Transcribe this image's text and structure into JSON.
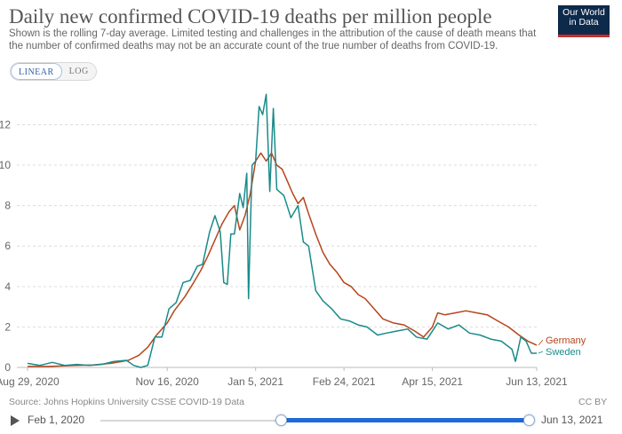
{
  "header": {
    "title": "Daily new confirmed COVID-19 deaths per million people",
    "subtitle": "Shown is the rolling 7-day average. Limited testing and challenges in the attribution of the cause of death means that the number of confirmed deaths may not be an accurate count of the true number of deaths from COVID-19."
  },
  "logo": {
    "line1": "Our World",
    "line2": "in Data",
    "colors": {
      "bg": "#0d2a4b",
      "accent": "#cc2b2b"
    }
  },
  "controls": {
    "linear_label": "LINEAR",
    "log_label": "LOG",
    "active": "LINEAR"
  },
  "footer": {
    "source": "Source: Johns Hopkins University CSSE COVID-19 Data",
    "license": "CC BY"
  },
  "timeline": {
    "start_label": "Feb 1, 2020",
    "end_label": "Jun 13, 2021",
    "selected_start": "Aug 29, 2020",
    "selected_end": "Jun 13, 2021"
  },
  "chart_data": {
    "type": "line",
    "title": "Daily new confirmed COVID-19 deaths per million people",
    "xlabel": "",
    "ylabel": "",
    "x_range": [
      "2020-08-29",
      "2021-06-13"
    ],
    "ylim": [
      0,
      13.6
    ],
    "y_ticks": [
      0,
      2,
      4,
      6,
      8,
      10,
      12
    ],
    "x_ticks": [
      {
        "date": "2020-08-29",
        "label": "Aug 29, 2020"
      },
      {
        "date": "2020-11-16",
        "label": "Nov 16, 2020"
      },
      {
        "date": "2021-01-05",
        "label": "Jan 5, 2021"
      },
      {
        "date": "2021-02-24",
        "label": "Feb 24, 2021"
      },
      {
        "date": "2021-04-15",
        "label": "Apr 15, 2021"
      },
      {
        "date": "2021-06-13",
        "label": "Jun 13, 2021"
      }
    ],
    "grid": "horizontal dashed",
    "legend": "right end labels",
    "series": [
      {
        "name": "Germany",
        "color": "#b5451b",
        "points": [
          [
            "2020-08-29",
            0.05
          ],
          [
            "2020-09-10",
            0.05
          ],
          [
            "2020-09-25",
            0.1
          ],
          [
            "2020-10-05",
            0.12
          ],
          [
            "2020-10-15",
            0.2
          ],
          [
            "2020-10-25",
            0.35
          ],
          [
            "2020-10-31",
            0.6
          ],
          [
            "2020-11-05",
            1.0
          ],
          [
            "2020-11-10",
            1.6
          ],
          [
            "2020-11-16",
            2.2
          ],
          [
            "2020-11-20",
            2.8
          ],
          [
            "2020-11-26",
            3.5
          ],
          [
            "2020-12-01",
            4.2
          ],
          [
            "2020-12-05",
            4.8
          ],
          [
            "2020-12-09",
            5.5
          ],
          [
            "2020-12-13",
            6.3
          ],
          [
            "2020-12-17",
            7.1
          ],
          [
            "2020-12-21",
            7.7
          ],
          [
            "2020-12-24",
            8.0
          ],
          [
            "2020-12-27",
            6.8
          ],
          [
            "2020-12-30",
            7.5
          ],
          [
            "2021-01-02",
            8.6
          ],
          [
            "2021-01-05",
            10.2
          ],
          [
            "2021-01-08",
            10.6
          ],
          [
            "2021-01-11",
            10.2
          ],
          [
            "2021-01-14",
            10.6
          ],
          [
            "2021-01-17",
            10.0
          ],
          [
            "2021-01-20",
            9.8
          ],
          [
            "2021-01-23",
            9.2
          ],
          [
            "2021-01-26",
            8.6
          ],
          [
            "2021-01-29",
            8.1
          ],
          [
            "2021-02-01",
            8.4
          ],
          [
            "2021-02-04",
            7.6
          ],
          [
            "2021-02-08",
            6.6
          ],
          [
            "2021-02-12",
            5.7
          ],
          [
            "2021-02-16",
            5.1
          ],
          [
            "2021-02-20",
            4.7
          ],
          [
            "2021-02-24",
            4.2
          ],
          [
            "2021-02-28",
            4.0
          ],
          [
            "2021-03-04",
            3.6
          ],
          [
            "2021-03-08",
            3.4
          ],
          [
            "2021-03-12",
            3.0
          ],
          [
            "2021-03-18",
            2.4
          ],
          [
            "2021-03-24",
            2.2
          ],
          [
            "2021-03-30",
            2.1
          ],
          [
            "2021-04-05",
            1.8
          ],
          [
            "2021-04-10",
            1.5
          ],
          [
            "2021-04-15",
            2.0
          ],
          [
            "2021-04-18",
            2.7
          ],
          [
            "2021-04-22",
            2.6
          ],
          [
            "2021-04-28",
            2.7
          ],
          [
            "2021-05-04",
            2.8
          ],
          [
            "2021-05-10",
            2.7
          ],
          [
            "2021-05-16",
            2.6
          ],
          [
            "2021-05-22",
            2.3
          ],
          [
            "2021-05-28",
            2.0
          ],
          [
            "2021-06-03",
            1.6
          ],
          [
            "2021-06-08",
            1.3
          ],
          [
            "2021-06-13",
            1.1
          ]
        ]
      },
      {
        "name": "Sweden",
        "color": "#1a8a8a",
        "points": [
          [
            "2020-08-29",
            0.2
          ],
          [
            "2020-09-05",
            0.1
          ],
          [
            "2020-09-12",
            0.25
          ],
          [
            "2020-09-19",
            0.1
          ],
          [
            "2020-09-26",
            0.15
          ],
          [
            "2020-10-03",
            0.1
          ],
          [
            "2020-10-10",
            0.15
          ],
          [
            "2020-10-17",
            0.3
          ],
          [
            "2020-10-24",
            0.35
          ],
          [
            "2020-10-28",
            0.1
          ],
          [
            "2020-11-01",
            0.0
          ],
          [
            "2020-11-05",
            0.1
          ],
          [
            "2020-11-09",
            1.5
          ],
          [
            "2020-11-13",
            1.5
          ],
          [
            "2020-11-17",
            2.9
          ],
          [
            "2020-11-21",
            3.2
          ],
          [
            "2020-11-25",
            4.2
          ],
          [
            "2020-11-29",
            4.3
          ],
          [
            "2020-12-03",
            5.0
          ],
          [
            "2020-12-06",
            5.1
          ],
          [
            "2020-12-10",
            6.7
          ],
          [
            "2020-12-13",
            7.5
          ],
          [
            "2020-12-16",
            6.7
          ],
          [
            "2020-12-18",
            4.2
          ],
          [
            "2020-12-20",
            4.1
          ],
          [
            "2020-12-22",
            6.6
          ],
          [
            "2020-12-24",
            6.6
          ],
          [
            "2020-12-27",
            8.6
          ],
          [
            "2020-12-29",
            7.9
          ],
          [
            "2020-12-31",
            9.6
          ],
          [
            "2021-01-01",
            3.4
          ],
          [
            "2021-01-02",
            6.8
          ],
          [
            "2021-01-03",
            10.0
          ],
          [
            "2021-01-05",
            10.2
          ],
          [
            "2021-01-07",
            12.9
          ],
          [
            "2021-01-09",
            12.5
          ],
          [
            "2021-01-11",
            13.5
          ],
          [
            "2021-01-13",
            8.7
          ],
          [
            "2021-01-15",
            12.8
          ],
          [
            "2021-01-17",
            8.8
          ],
          [
            "2021-01-21",
            8.5
          ],
          [
            "2021-01-25",
            7.4
          ],
          [
            "2021-01-29",
            8.0
          ],
          [
            "2021-02-01",
            6.2
          ],
          [
            "2021-02-04",
            6.0
          ],
          [
            "2021-02-08",
            3.8
          ],
          [
            "2021-02-12",
            3.3
          ],
          [
            "2021-02-17",
            2.9
          ],
          [
            "2021-02-22",
            2.4
          ],
          [
            "2021-02-27",
            2.3
          ],
          [
            "2021-03-04",
            2.1
          ],
          [
            "2021-03-09",
            2.0
          ],
          [
            "2021-03-15",
            1.6
          ],
          [
            "2021-03-20",
            1.7
          ],
          [
            "2021-03-26",
            1.8
          ],
          [
            "2021-04-01",
            1.9
          ],
          [
            "2021-04-06",
            1.5
          ],
          [
            "2021-04-12",
            1.4
          ],
          [
            "2021-04-18",
            2.2
          ],
          [
            "2021-04-24",
            1.9
          ],
          [
            "2021-04-30",
            2.1
          ],
          [
            "2021-05-06",
            1.7
          ],
          [
            "2021-05-12",
            1.6
          ],
          [
            "2021-05-18",
            1.4
          ],
          [
            "2021-05-24",
            1.3
          ],
          [
            "2021-05-30",
            0.9
          ],
          [
            "2021-06-01",
            0.3
          ],
          [
            "2021-06-04",
            1.5
          ],
          [
            "2021-06-07",
            1.3
          ],
          [
            "2021-06-10",
            0.7
          ],
          [
            "2021-06-13",
            0.7
          ]
        ]
      }
    ]
  }
}
